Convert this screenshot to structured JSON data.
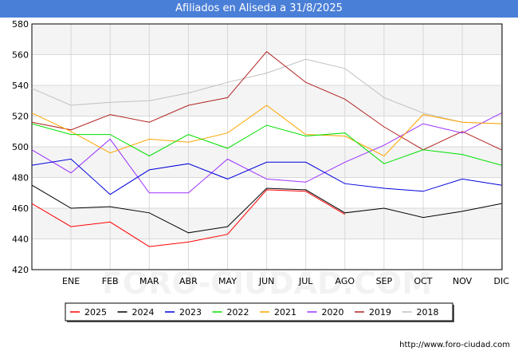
{
  "title": "Afiliados en Aliseda a 31/8/2025",
  "footer": "http://www.foro-ciudad.com",
  "watermark": "FORO-CIUDAD.COM",
  "chart_data": {
    "type": "line",
    "title": "Afiliados en Aliseda a 31/8/2025",
    "x_tick_labels": [
      "ENE",
      "FEB",
      "MAR",
      "ABR",
      "MAY",
      "JUN",
      "JUL",
      "AGO",
      "SEP",
      "OCT",
      "NOV",
      "DIC"
    ],
    "ylim": [
      420,
      580
    ],
    "yticks": [
      420,
      440,
      460,
      480,
      500,
      520,
      540,
      560,
      580
    ],
    "grid": true,
    "legend_position": "bottom",
    "series": [
      {
        "name": "2018",
        "color": "#c0c0c0",
        "values": [
          538,
          527,
          529,
          530,
          535,
          542,
          548,
          557,
          551,
          532,
          522,
          516,
          515
        ]
      },
      {
        "name": "2019",
        "color": "#b22222",
        "values": [
          516,
          511,
          521,
          516,
          527,
          532,
          562,
          542,
          531,
          513,
          498,
          510,
          498
        ]
      },
      {
        "name": "2020",
        "color": "#9b30ff",
        "values": [
          498,
          483,
          505,
          470,
          470,
          492,
          479,
          477,
          490,
          501,
          515,
          509,
          522
        ]
      },
      {
        "name": "2021",
        "color": "#ffa500",
        "values": [
          522,
          510,
          496,
          505,
          503,
          509,
          527,
          508,
          507,
          494,
          521,
          516,
          515
        ]
      },
      {
        "name": "2022",
        "color": "#00e000",
        "values": [
          515,
          508,
          508,
          494,
          508,
          499,
          514,
          507,
          509,
          489,
          498,
          495,
          488
        ]
      },
      {
        "name": "2023",
        "color": "#0000dd",
        "values": [
          488,
          492,
          469,
          485,
          489,
          479,
          490,
          490,
          476,
          473,
          471,
          479,
          475
        ]
      },
      {
        "name": "2024",
        "color": "#000000",
        "values": [
          475,
          460,
          461,
          457,
          444,
          448,
          473,
          472,
          457,
          460,
          454,
          458,
          463
        ]
      },
      {
        "name": "2025",
        "color": "#ff0000",
        "values": [
          463,
          448,
          451,
          435,
          438,
          443,
          472,
          471,
          456
        ]
      }
    ],
    "legend_order": [
      "2025",
      "2024",
      "2023",
      "2022",
      "2021",
      "2020",
      "2019",
      "2018"
    ]
  }
}
